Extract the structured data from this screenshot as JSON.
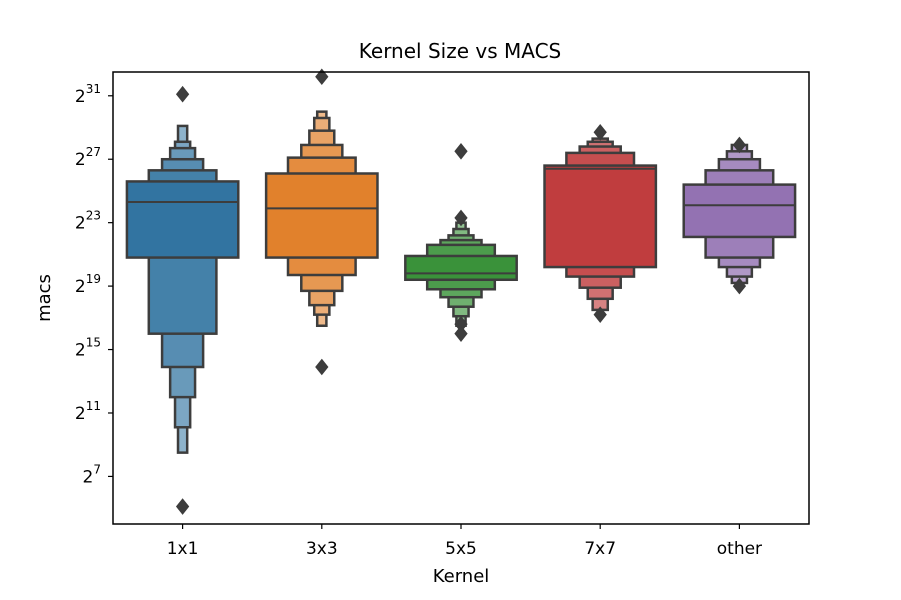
{
  "chart_data": {
    "type": "boxen",
    "title": "Kernel Size vs MACS",
    "xlabel": "Kernel",
    "ylabel": "macs",
    "y_scale": "log2",
    "ylim": [
      4,
      32.5
    ],
    "yticks": [
      {
        "base": "2",
        "exp": "7",
        "value": 7
      },
      {
        "base": "2",
        "exp": "11",
        "value": 11
      },
      {
        "base": "2",
        "exp": "15",
        "value": 15
      },
      {
        "base": "2",
        "exp": "19",
        "value": 19
      },
      {
        "base": "2",
        "exp": "23",
        "value": 23
      },
      {
        "base": "2",
        "exp": "27",
        "value": 27
      },
      {
        "base": "2",
        "exp": "31",
        "value": 31
      }
    ],
    "categories": [
      "1x1",
      "3x3",
      "5x5",
      "7x7",
      "other"
    ],
    "series": [
      {
        "category": "1x1",
        "color": "#3274a1",
        "median": 24.3,
        "levels": [
          [
            20.8,
            25.6
          ],
          [
            16.0,
            26.3
          ],
          [
            13.9,
            27.0
          ],
          [
            12.0,
            27.7
          ],
          [
            10.1,
            28.1
          ],
          [
            8.5,
            29.1
          ]
        ],
        "outliers": [
          31.1,
          5.1
        ]
      },
      {
        "category": "3x3",
        "color": "#e1812c",
        "median": 23.9,
        "levels": [
          [
            20.8,
            26.1
          ],
          [
            19.7,
            27.1
          ],
          [
            18.7,
            27.9
          ],
          [
            17.8,
            28.8
          ],
          [
            17.2,
            29.6
          ],
          [
            16.5,
            30.0
          ]
        ],
        "outliers": [
          32.2,
          13.9
        ]
      },
      {
        "category": "5x5",
        "color": "#3a923a",
        "median": 19.8,
        "levels": [
          [
            19.4,
            20.9
          ],
          [
            18.8,
            21.6
          ],
          [
            18.3,
            21.9
          ],
          [
            17.7,
            22.2
          ],
          [
            17.1,
            22.6
          ],
          [
            16.5,
            23.0
          ]
        ],
        "outliers": [
          27.5,
          23.3,
          16.6,
          16.0
        ]
      },
      {
        "category": "7x7",
        "color": "#c03d3e",
        "median": 26.4,
        "levels": [
          [
            20.2,
            26.6
          ],
          [
            19.6,
            27.4
          ],
          [
            18.9,
            27.8
          ],
          [
            18.2,
            28.1
          ],
          [
            17.5,
            28.3
          ]
        ],
        "outliers": [
          28.7,
          17.2
        ]
      },
      {
        "category": "other",
        "color": "#9372b2",
        "median": 24.1,
        "levels": [
          [
            22.1,
            25.4
          ],
          [
            20.8,
            26.3
          ],
          [
            20.2,
            27.0
          ],
          [
            19.6,
            27.5
          ],
          [
            19.2,
            27.9
          ]
        ],
        "outliers": [
          27.9,
          19.0
        ]
      }
    ]
  }
}
